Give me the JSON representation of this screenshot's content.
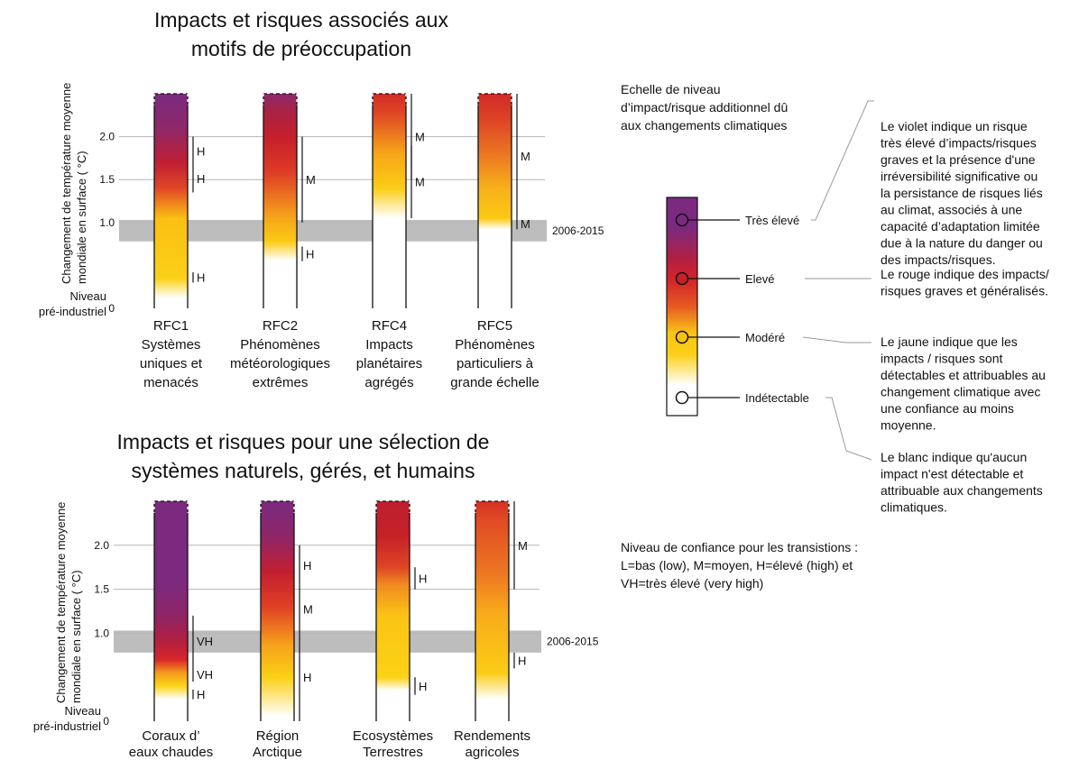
{
  "figure": {
    "confidence_note": [
      "Niveau de confiance pour les transistions :",
      "L=bas (low), M=moyen, H=élevé (high)  et",
      "VH=très élevé (very high)"
    ]
  },
  "legend": {
    "heading": [
      "Echelle de niveau",
      "d’impact/risque additionnel dû",
      "aux changements climatiques"
    ],
    "levels": [
      {
        "label": "Très élevé",
        "color": "#7b2a80",
        "description": [
          "Le violet indique un risque",
          "très élevé d’impacts/risques",
          "graves et la présence d'une",
          "irréversibilité significative ou",
          "la persistance de risques liés",
          "au climat, associés à une",
          "capacité d’adaptation limitée",
          "due à la nature du danger ou",
          "des impacts/risques."
        ]
      },
      {
        "label": "Elevé",
        "color": "#c6202b",
        "description": [
          "Le rouge indique des impacts/",
          "risques graves et généralisés."
        ]
      },
      {
        "label": "Modéré",
        "color": "#f9c20f",
        "description": [
          "Le jaune indique que les",
          "impacts / risques sont",
          "détectables et attribuables au",
          "changement climatique avec",
          "une confiance au moins",
          "moyenne."
        ]
      },
      {
        "label": "Indétectable",
        "color": "#ffffff",
        "description": [
          "Le blanc indique qu'aucun",
          "impact n'est détectable et",
          "attribuable aux changements",
          "climatiques."
        ]
      }
    ]
  },
  "chart_data": [
    {
      "type": "bar",
      "title": [
        "Impacts et risques associés aux",
        "motifs de préoccupation"
      ],
      "ylabel": [
        "Changement de température moyenne",
        "mondiale en surface ( °C)"
      ],
      "ylim": [
        0,
        2.5
      ],
      "yticks": [
        {
          "value": 0,
          "label": "0"
        },
        {
          "value": 1.0,
          "label": "1.0"
        },
        {
          "value": 1.5,
          "label": "1.5"
        },
        {
          "value": 2.0,
          "label": "2.0"
        }
      ],
      "baseline_label": [
        "Niveau",
        "pré-industriel"
      ],
      "reference_band": {
        "from": 0.78,
        "to": 1.03,
        "label": "2006-2015"
      },
      "bars": [
        {
          "name": [
            "RFC1",
            "Systèmes",
            "uniques et",
            "menacés"
          ],
          "stops": [
            [
              0.12,
              "#ffffff"
            ],
            [
              0.35,
              "#fbd017"
            ],
            [
              1.05,
              "#fbbf12"
            ],
            [
              1.4,
              "#e04626"
            ],
            [
              1.7,
              "#c01f33"
            ],
            [
              2.1,
              "#8e2869"
            ],
            [
              2.5,
              "#7b2a80"
            ]
          ],
          "transitions": [
            {
              "from": 0.3,
              "to": 0.42,
              "level": "H"
            },
            {
              "from": 1.35,
              "to": 1.67,
              "level": "H"
            },
            {
              "from": 1.67,
              "to": 2.0,
              "level": "H"
            }
          ]
        },
        {
          "name": [
            "RFC2",
            "Phénomènes",
            "météorologiques",
            "extrêmes"
          ],
          "stops": [
            [
              0.56,
              "#ffffff"
            ],
            [
              0.78,
              "#fbcb15"
            ],
            [
              1.05,
              "#f6a51a"
            ],
            [
              1.6,
              "#de3a26"
            ],
            [
              2.0,
              "#c61f2c"
            ],
            [
              2.3,
              "#a82246"
            ],
            [
              2.5,
              "#8e2a6c"
            ]
          ],
          "transitions": [
            {
              "from": 0.55,
              "to": 0.72,
              "level": "H"
            },
            {
              "from": 1.0,
              "to": 2.0,
              "level": "M"
            }
          ]
        },
        {
          "name": [
            "RFC4",
            "Impacts",
            "planétaires",
            "agrégés"
          ],
          "stops": [
            [
              1.05,
              "#ffffff"
            ],
            [
              1.4,
              "#fbcd15"
            ],
            [
              1.8,
              "#f6a619"
            ],
            [
              2.25,
              "#e04a24"
            ],
            [
              2.5,
              "#d22b27"
            ]
          ],
          "transitions": [
            {
              "from": 1.05,
              "to": 1.9,
              "level": "M"
            },
            {
              "from": 1.5,
              "to": 2.5,
              "level": "M"
            }
          ]
        },
        {
          "name": [
            "RFC5",
            "Phénomènes",
            "particuliers à",
            "grande échelle"
          ],
          "stops": [
            [
              0.92,
              "#ffffff"
            ],
            [
              1.05,
              "#fbc913"
            ],
            [
              1.4,
              "#f7b019"
            ],
            [
              1.8,
              "#eb7622"
            ],
            [
              2.2,
              "#dd4426"
            ],
            [
              2.5,
              "#d22a27"
            ]
          ],
          "transitions": [
            {
              "from": 0.92,
              "to": 1.05,
              "level": "M"
            },
            {
              "from": 1.05,
              "to": 2.5,
              "level": "M"
            }
          ]
        }
      ]
    },
    {
      "type": "bar",
      "title": [
        "Impacts et risques pour une sélection de",
        "systèmes naturels, gérés, et humains"
      ],
      "ylabel": [
        "Changement de température moyenne",
        "mondiale en surface ( °C)"
      ],
      "ylim": [
        0,
        2.5
      ],
      "yticks": [
        {
          "value": 0,
          "label": "0"
        },
        {
          "value": 1.0,
          "label": "1.0"
        },
        {
          "value": 1.5,
          "label": "1.5"
        },
        {
          "value": 2.0,
          "label": "2.0"
        }
      ],
      "baseline_label": [
        "Niveau",
        "pré-industriel"
      ],
      "reference_band": {
        "from": 0.78,
        "to": 1.03,
        "label": "2006-2015"
      },
      "bars": [
        {
          "name": [
            "Coraux d’",
            "eaux chaudes"
          ],
          "stops": [
            [
              0.25,
              "#ffffff"
            ],
            [
              0.4,
              "#fbd519"
            ],
            [
              0.55,
              "#f59a1c"
            ],
            [
              0.7,
              "#d9262a"
            ],
            [
              0.9,
              "#b41f3d"
            ],
            [
              1.2,
              "#8e2566"
            ],
            [
              1.6,
              "#7b2a80"
            ],
            [
              2.5,
              "#7b2a80"
            ]
          ],
          "transitions": [
            {
              "from": 0.25,
              "to": 0.36,
              "level": "H"
            },
            {
              "from": 0.45,
              "to": 0.62,
              "level": "VH"
            },
            {
              "from": 0.62,
              "to": 1.2,
              "level": "VH"
            }
          ]
        },
        {
          "name": [
            "Région",
            "Arctique"
          ],
          "stops": [
            [
              0.05,
              "#ffffff"
            ],
            [
              0.5,
              "#fbd016"
            ],
            [
              0.85,
              "#f6a51a"
            ],
            [
              1.3,
              "#e04024"
            ],
            [
              1.7,
              "#c21f30"
            ],
            [
              2.1,
              "#8e2668"
            ],
            [
              2.5,
              "#7b2a80"
            ]
          ],
          "transitions": [
            {
              "from": 0.0,
              "to": 1.0,
              "level": "H"
            },
            {
              "from": 1.0,
              "to": 1.55,
              "level": "M"
            },
            {
              "from": 1.55,
              "to": 2.0,
              "level": "H"
            }
          ]
        },
        {
          "name": [
            "Ecosystèmes",
            "Terrestres"
          ],
          "stops": [
            [
              0.35,
              "#ffffff"
            ],
            [
              0.5,
              "#fbd215"
            ],
            [
              1.2,
              "#fbc315"
            ],
            [
              1.55,
              "#f08b20"
            ],
            [
              1.75,
              "#df4524"
            ],
            [
              2.1,
              "#c52128"
            ],
            [
              2.5,
              "#bd1f2d"
            ]
          ],
          "transitions": [
            {
              "from": 0.3,
              "to": 0.5,
              "level": "H"
            },
            {
              "from": 1.5,
              "to": 1.75,
              "level": "H"
            }
          ]
        },
        {
          "name": [
            "Rendements",
            "agricoles"
          ],
          "stops": [
            [
              0.25,
              "#ffffff"
            ],
            [
              0.55,
              "#fbcb16"
            ],
            [
              1.2,
              "#f8ad19"
            ],
            [
              1.7,
              "#ec7522"
            ],
            [
              2.3,
              "#e04a24"
            ],
            [
              2.5,
              "#d43025"
            ]
          ],
          "transitions": [
            {
              "from": 0.6,
              "to": 0.78,
              "level": "H"
            },
            {
              "from": 1.5,
              "to": 2.5,
              "level": "M"
            }
          ]
        }
      ]
    }
  ]
}
